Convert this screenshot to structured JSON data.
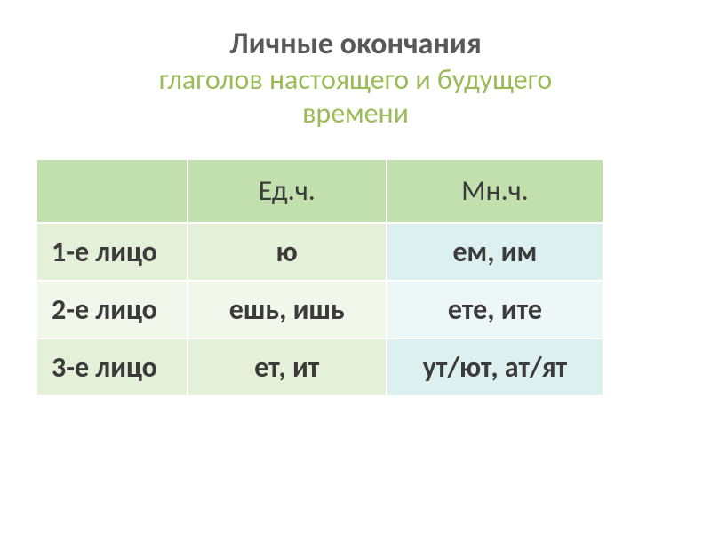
{
  "title": {
    "main": "Личные окончания",
    "sub_line1": "глаголов настоящего и будущего",
    "sub_line2": "времени"
  },
  "table": {
    "type": "table",
    "background_color": "#ffffff",
    "border_color": "#ffffff",
    "header_bg": "#c2e0ae",
    "row_odd_bg_left": "#e4f0d8",
    "row_odd_bg_right": "#dcf0f0",
    "row_even_bg_left": "#f1f7eb",
    "row_even_bg_right": "#eef7f7",
    "text_color": "#3b3b3b",
    "fontsize": 32,
    "columns": [
      "",
      "Ед.ч.",
      "Мн.ч."
    ],
    "rows": [
      {
        "label": "1-е лицо",
        "singular": "ю",
        "plural": "ем, им"
      },
      {
        "label": "2-е лицо",
        "singular": "ешь, ишь",
        "plural": "ете, ите"
      },
      {
        "label": "3-е лицо",
        "singular": "ет, ит",
        "plural": "ут/ют, ат/ят"
      }
    ]
  },
  "colors": {
    "title_main": "#595959",
    "title_sub": "#9bbb59"
  }
}
